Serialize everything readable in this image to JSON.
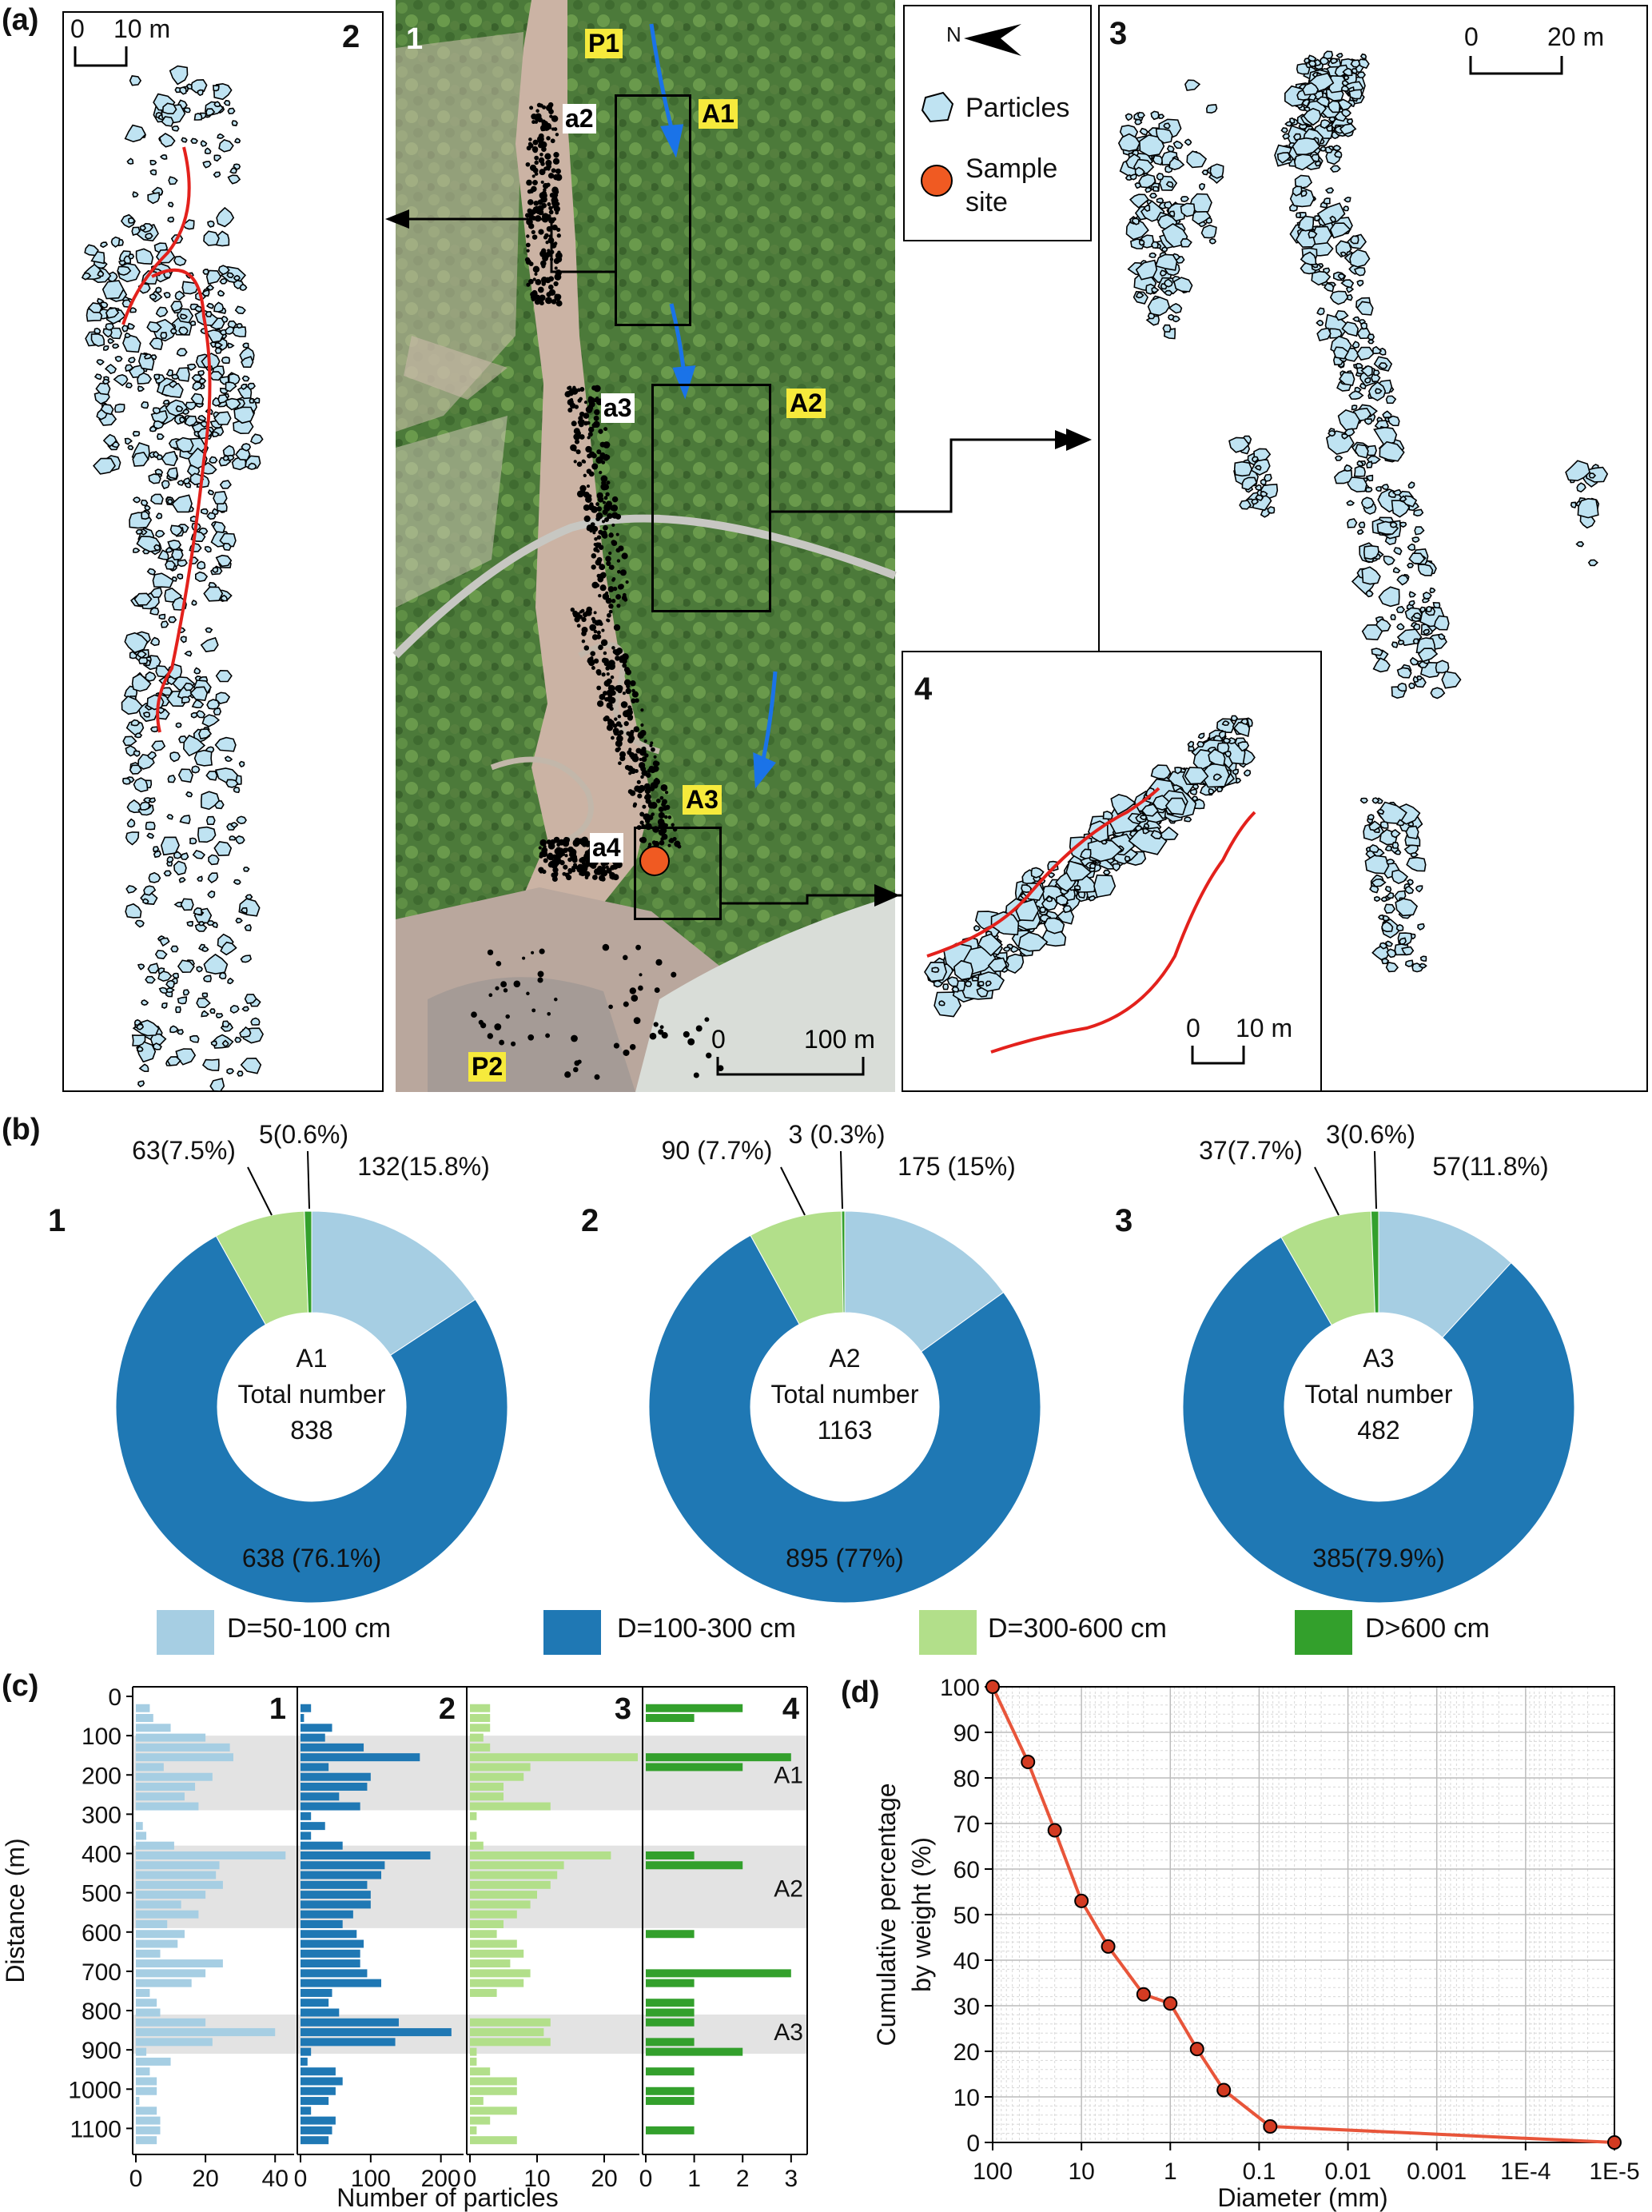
{
  "panel_a": {
    "label": "(a)",
    "sub_numbers": [
      "1",
      "2",
      "3",
      "4"
    ],
    "photo_labels": {
      "p1": "P1",
      "p2": "P2",
      "a1": "A1",
      "a2": "A2",
      "a3": "A3",
      "small_a2": "a2",
      "small_a3": "a3",
      "small_a4": "a4"
    },
    "scales": {
      "sub2": "10 m",
      "sub3": "20 m",
      "sub4": "10 m",
      "photo": "100 m",
      "zero": "0"
    },
    "legend": {
      "north": "N",
      "particles": "Particles",
      "sample_site_1": "Sample",
      "sample_site_2": "site"
    },
    "colors": {
      "particle_fill": "#bfe3f2",
      "red_line": "#e3211c",
      "flow_arrow": "#1a73e8",
      "sample_site": "#f05a22",
      "label_yellow": "#f6ea3c"
    }
  },
  "panel_b": {
    "label": "(b)",
    "donuts": [
      {
        "num": "1",
        "area": "A1",
        "center_line": "Total number",
        "total": "838",
        "slice_labels": {
          "s1": "132(15.8%)",
          "s2": "638 (76.1%)",
          "s3": "63(7.5%)",
          "s4": "5(0.6%)"
        }
      },
      {
        "num": "2",
        "area": "A2",
        "center_line": "Total number",
        "total": "1163",
        "slice_labels": {
          "s1": "175 (15%)",
          "s2": "895 (77%)",
          "s3": "90 (7.7%)",
          "s4": "3 (0.3%)"
        }
      },
      {
        "num": "3",
        "area": "A3",
        "center_line": "Total number",
        "total": "482",
        "slice_labels": {
          "s1": "57(11.8%)",
          "s2": "385(79.9%)",
          "s3": "37(7.7%)",
          "s4": "3(0.6%)"
        }
      }
    ],
    "legend": [
      "D=50-100 cm",
      "D=100-300 cm",
      "D=300-600 cm",
      "D>600 cm"
    ],
    "colors": [
      "#a6cee3",
      "#1f78b4",
      "#b2df8a",
      "#33a02c"
    ]
  },
  "chart_data": [
    {
      "type": "pie",
      "title": "A1",
      "categories": [
        "D=50-100 cm",
        "D=100-300 cm",
        "D=300-600 cm",
        "D>600 cm"
      ],
      "values": [
        132,
        638,
        63,
        5
      ],
      "percent": [
        15.8,
        76.1,
        7.5,
        0.6
      ],
      "total": 838
    },
    {
      "type": "pie",
      "title": "A2",
      "categories": [
        "D=50-100 cm",
        "D=100-300 cm",
        "D=300-600 cm",
        "D>600 cm"
      ],
      "values": [
        175,
        895,
        90,
        3
      ],
      "percent": [
        15,
        77,
        7.7,
        0.3
      ],
      "total": 1163
    },
    {
      "type": "pie",
      "title": "A3",
      "categories": [
        "D=50-100 cm",
        "D=100-300 cm",
        "D=300-600 cm",
        "D>600 cm"
      ],
      "values": [
        57,
        385,
        37,
        3
      ],
      "percent": [
        11.8,
        79.9,
        7.7,
        0.6
      ],
      "total": 482
    },
    {
      "type": "bar",
      "orientation": "horizontal",
      "panel": "(c)",
      "ylabel": "Distance (m)",
      "xlabel": "Number of particles",
      "ylim": [
        0,
        1150
      ],
      "yticks": [
        "0",
        "100",
        "200",
        "300",
        "400",
        "500",
        "600",
        "700",
        "800",
        "900",
        "1000",
        "1100"
      ],
      "zones": [
        {
          "name": "A1",
          "range": [
            100,
            290
          ]
        },
        {
          "name": "A2",
          "range": [
            380,
            590
          ]
        },
        {
          "name": "A3",
          "range": [
            810,
            910
          ]
        }
      ],
      "distance": [
        30,
        55,
        80,
        105,
        130,
        155,
        180,
        205,
        230,
        255,
        280,
        305,
        330,
        355,
        380,
        405,
        430,
        455,
        480,
        505,
        530,
        555,
        580,
        605,
        630,
        655,
        680,
        705,
        730,
        755,
        780,
        805,
        830,
        855,
        880,
        905,
        930,
        955,
        980,
        1005,
        1030,
        1055,
        1080,
        1105,
        1130
      ],
      "series": [
        {
          "name": "1",
          "xlim": [
            0,
            45
          ],
          "xticks": [
            "0",
            "20",
            "40"
          ],
          "values": [
            4,
            5,
            10,
            20,
            27,
            28,
            8,
            22,
            17,
            14,
            18,
            0,
            2,
            3,
            11,
            43,
            24,
            23,
            25,
            20,
            13,
            18,
            9,
            14,
            12,
            7,
            25,
            20,
            16,
            4,
            6,
            7,
            20,
            40,
            22,
            3,
            10,
            4,
            6,
            6,
            1,
            6,
            7,
            7,
            6
          ]
        },
        {
          "name": "2",
          "xlim": [
            0,
            230
          ],
          "xticks": [
            "0",
            "100",
            "200"
          ],
          "values": [
            15,
            5,
            45,
            35,
            90,
            170,
            40,
            100,
            95,
            55,
            85,
            15,
            35,
            15,
            60,
            185,
            120,
            115,
            95,
            100,
            100,
            75,
            60,
            80,
            90,
            85,
            85,
            95,
            115,
            45,
            40,
            55,
            140,
            215,
            135,
            15,
            10,
            50,
            60,
            50,
            40,
            15,
            50,
            45,
            40
          ]
        },
        {
          "name": "3",
          "xlim": [
            0,
            25
          ],
          "xticks": [
            "0",
            "10",
            "20"
          ],
          "values": [
            3,
            3,
            3,
            2,
            3,
            25,
            9,
            8,
            5,
            5,
            12,
            1,
            0,
            1,
            2,
            21,
            14,
            13,
            12,
            10,
            9,
            7,
            5,
            4,
            7,
            8,
            6,
            9,
            8,
            4,
            0,
            0,
            12,
            11,
            12,
            1,
            1,
            3,
            7,
            7,
            2,
            7,
            3,
            1,
            7
          ]
        },
        {
          "name": "4",
          "xlim": [
            0,
            3.3
          ],
          "xticks": [
            "0",
            "1",
            "2",
            "3"
          ],
          "values": [
            2,
            1,
            0,
            0,
            0,
            3,
            2,
            0,
            0,
            0,
            0,
            0,
            0,
            0,
            0,
            1,
            2,
            0,
            0,
            0,
            0,
            0,
            0,
            1,
            0,
            0,
            0,
            3,
            1,
            0,
            1,
            1,
            1,
            0,
            1,
            2,
            0,
            1,
            0,
            1,
            1,
            0,
            0,
            1,
            0
          ]
        }
      ]
    },
    {
      "type": "line",
      "panel": "(d)",
      "xlabel": "Diameter (mm)",
      "ylabel": "Cumulative percentage by weight (%)",
      "x_scale": "log",
      "x_reversed": true,
      "xlim": [
        100,
        1e-05
      ],
      "ylim": [
        0,
        100
      ],
      "xticks": [
        "100",
        "10",
        "1",
        "0.1",
        "0.01",
        "0.001",
        "1E-4",
        "1E-5"
      ],
      "yticks": [
        "0",
        "10",
        "20",
        "30",
        "40",
        "50",
        "60",
        "70",
        "80",
        "90",
        "100"
      ],
      "grid": true,
      "x": [
        100,
        40,
        20,
        10,
        5,
        2,
        1,
        0.5,
        0.25,
        0.075,
        1e-05
      ],
      "y": [
        100,
        83.5,
        68.5,
        53,
        43,
        32.5,
        30.5,
        20.5,
        11.5,
        3.5,
        0
      ],
      "marker_count": 11
    }
  ],
  "panel_c": {
    "label": "(c)",
    "ylabel": "Distance (m)",
    "xlabel": "Number of particles",
    "sub_numbers": [
      "1",
      "2",
      "3",
      "4"
    ],
    "yticks": [
      "0",
      "100",
      "200",
      "300",
      "400",
      "500",
      "600",
      "700",
      "800",
      "900",
      "1000",
      "1100"
    ],
    "zones": [
      "A1",
      "A2",
      "A3"
    ],
    "xticks": [
      [
        "0",
        "20",
        "40"
      ],
      [
        "0",
        "100",
        "200"
      ],
      [
        "0",
        "10",
        "20"
      ],
      [
        "0",
        "1",
        "2",
        "3"
      ]
    ]
  },
  "panel_d": {
    "label": "(d)",
    "ylabel_1": "Cumulative percentage",
    "ylabel_2": "by weight (%)",
    "xlabel": "Diameter (mm)",
    "xticks": [
      "100",
      "10",
      "1",
      "0.1",
      "0.01",
      "0.001",
      "1E-4",
      "1E-5"
    ],
    "yticks": [
      "0",
      "10",
      "20",
      "30",
      "40",
      "50",
      "60",
      "70",
      "80",
      "90",
      "100"
    ],
    "colors": {
      "line": "#e8553a",
      "marker": "#d33b22"
    }
  }
}
